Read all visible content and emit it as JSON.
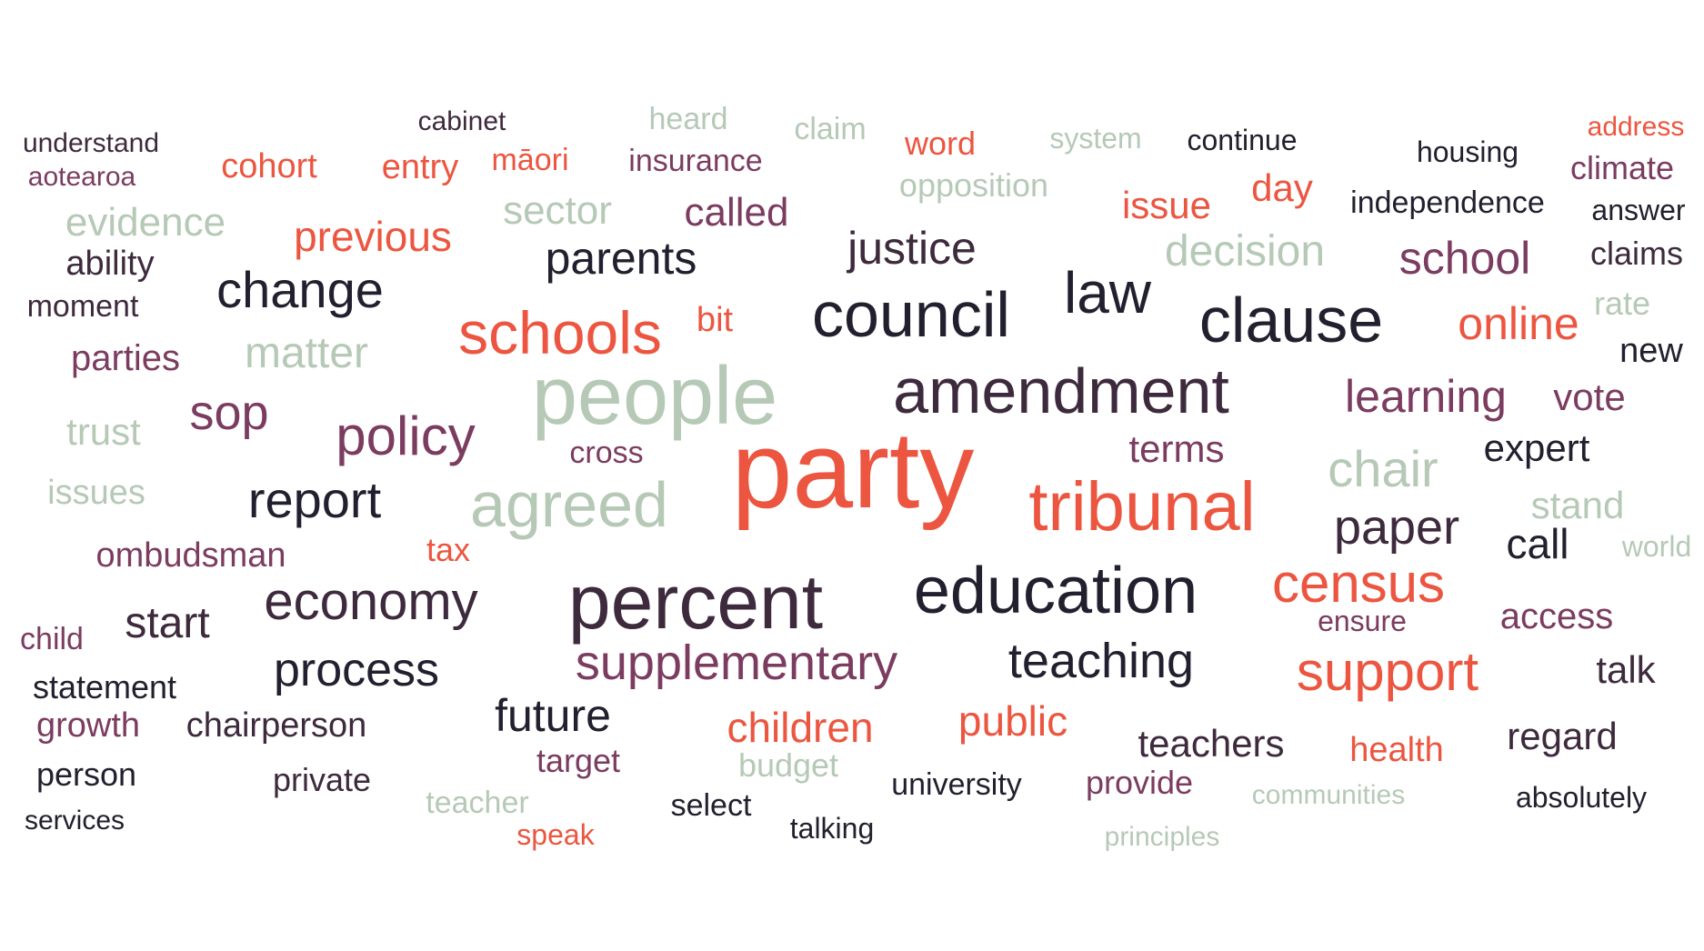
{
  "words": [
    {
      "text": "party",
      "tone": "coral"
    },
    {
      "text": "people",
      "tone": "sage"
    },
    {
      "text": "percent",
      "tone": "plum"
    },
    {
      "text": "tribunal",
      "tone": "coral"
    },
    {
      "text": "education",
      "tone": "dark"
    },
    {
      "text": "amendment",
      "tone": "plum"
    },
    {
      "text": "agreed",
      "tone": "sage"
    },
    {
      "text": "council",
      "tone": "dark"
    },
    {
      "text": "clause",
      "tone": "dark"
    },
    {
      "text": "schools",
      "tone": "coral"
    },
    {
      "text": "policy",
      "tone": "berry"
    },
    {
      "text": "census",
      "tone": "coral"
    },
    {
      "text": "economy",
      "tone": "plum"
    },
    {
      "text": "supplementary",
      "tone": "berry"
    },
    {
      "text": "teaching",
      "tone": "dark"
    },
    {
      "text": "support",
      "tone": "coral"
    },
    {
      "text": "report",
      "tone": "dark"
    },
    {
      "text": "change",
      "tone": "dark"
    },
    {
      "text": "law",
      "tone": "dark"
    },
    {
      "text": "chair",
      "tone": "sage"
    },
    {
      "text": "paper",
      "tone": "plum"
    },
    {
      "text": "process",
      "tone": "dark"
    },
    {
      "text": "justice",
      "tone": "plum"
    },
    {
      "text": "parents",
      "tone": "dark"
    },
    {
      "text": "learning",
      "tone": "berry"
    },
    {
      "text": "school",
      "tone": "berry"
    },
    {
      "text": "online",
      "tone": "coral"
    },
    {
      "text": "matter",
      "tone": "sage"
    },
    {
      "text": "decision",
      "tone": "sage"
    },
    {
      "text": "sop",
      "tone": "berry"
    },
    {
      "text": "future",
      "tone": "dark"
    },
    {
      "text": "public",
      "tone": "coral"
    },
    {
      "text": "children",
      "tone": "coral"
    },
    {
      "text": "call",
      "tone": "dark"
    },
    {
      "text": "start",
      "tone": "plum"
    },
    {
      "text": "previous",
      "tone": "coral"
    },
    {
      "text": "called",
      "tone": "berry"
    },
    {
      "text": "sector",
      "tone": "sage"
    },
    {
      "text": "evidence",
      "tone": "sage"
    },
    {
      "text": "terms",
      "tone": "berry"
    },
    {
      "text": "vote",
      "tone": "berry"
    },
    {
      "text": "expert",
      "tone": "dark"
    },
    {
      "text": "stand",
      "tone": "sage"
    },
    {
      "text": "teachers",
      "tone": "plum"
    },
    {
      "text": "regard",
      "tone": "plum"
    },
    {
      "text": "trust",
      "tone": "sage"
    },
    {
      "text": "parties",
      "tone": "berry"
    },
    {
      "text": "issue",
      "tone": "coral"
    },
    {
      "text": "day",
      "tone": "coral"
    },
    {
      "text": "access",
      "tone": "berry"
    },
    {
      "text": "talk",
      "tone": "plum"
    },
    {
      "text": "chairperson",
      "tone": "plum"
    },
    {
      "text": "issues",
      "tone": "sage"
    },
    {
      "text": "health",
      "tone": "coral"
    },
    {
      "text": "ability",
      "tone": "plum"
    },
    {
      "text": "ombudsman",
      "tone": "berry"
    },
    {
      "text": "new",
      "tone": "dark"
    },
    {
      "text": "claims",
      "tone": "plum"
    },
    {
      "text": "climate",
      "tone": "berry"
    },
    {
      "text": "growth",
      "tone": "berry"
    },
    {
      "text": "statement",
      "tone": "dark"
    },
    {
      "text": "person",
      "tone": "dark"
    },
    {
      "text": "private",
      "tone": "plum"
    },
    {
      "text": "target",
      "tone": "berry"
    },
    {
      "text": "budget",
      "tone": "sage"
    },
    {
      "text": "provide",
      "tone": "berry"
    },
    {
      "text": "cohort",
      "tone": "coral"
    },
    {
      "text": "entry",
      "tone": "coral"
    },
    {
      "text": "opposition",
      "tone": "sage"
    },
    {
      "text": "independence",
      "tone": "dark"
    },
    {
      "text": "university",
      "tone": "dark"
    },
    {
      "text": "select",
      "tone": "dark"
    },
    {
      "text": "teacher",
      "tone": "sage"
    },
    {
      "text": "speak",
      "tone": "coral"
    },
    {
      "text": "insurance",
      "tone": "berry"
    },
    {
      "text": "moment",
      "tone": "plum"
    },
    {
      "text": "bit",
      "tone": "coral"
    },
    {
      "text": "tax",
      "tone": "coral"
    },
    {
      "text": "cross",
      "tone": "berry"
    },
    {
      "text": "rate",
      "tone": "sage"
    },
    {
      "text": "world",
      "tone": "sage"
    },
    {
      "text": "child",
      "tone": "berry"
    },
    {
      "text": "word",
      "tone": "coral"
    },
    {
      "text": "māori",
      "tone": "coral"
    },
    {
      "text": "heard",
      "tone": "sage"
    },
    {
      "text": "claim",
      "tone": "sage"
    },
    {
      "text": "ensure",
      "tone": "berry"
    },
    {
      "text": "housing",
      "tone": "dark"
    },
    {
      "text": "answer",
      "tone": "dark"
    },
    {
      "text": "absolutely",
      "tone": "dark"
    },
    {
      "text": "system",
      "tone": "sage"
    },
    {
      "text": "continue",
      "tone": "dark"
    },
    {
      "text": "communities",
      "tone": "sage"
    },
    {
      "text": "talking",
      "tone": "dark"
    },
    {
      "text": "principles",
      "tone": "sage"
    },
    {
      "text": "understand",
      "tone": "plum"
    },
    {
      "text": "aotearoa",
      "tone": "berry"
    },
    {
      "text": "cabinet",
      "tone": "plum"
    },
    {
      "text": "address",
      "tone": "coral"
    },
    {
      "text": "services",
      "tone": "dark"
    }
  ]
}
